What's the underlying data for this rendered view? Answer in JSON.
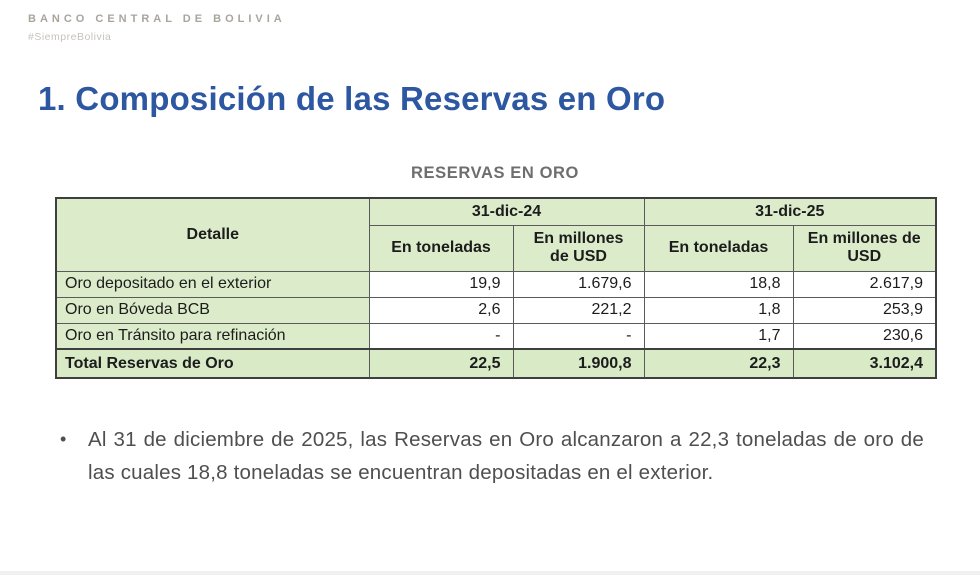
{
  "brand": {
    "name": "BANCO CENTRAL DE BOLIVIA",
    "tagline": "#SiempreBolivia"
  },
  "title": "1. Composición de las Reservas en Oro",
  "table": {
    "title": "RESERVAS EN ORO",
    "detail_header": "Detalle",
    "col_groups": [
      "31-dic-24",
      "31-dic-25"
    ],
    "sub_headers": [
      "En toneladas",
      "En millones de USD",
      "En toneladas",
      "En millones de USD"
    ],
    "rows": [
      {
        "label": "Oro depositado en el exterior",
        "values": [
          "19,9",
          "1.679,6",
          "18,8",
          "2.617,9"
        ]
      },
      {
        "label": "Oro en Bóveda BCB",
        "values": [
          "2,6",
          "221,2",
          "1,8",
          "253,9"
        ]
      },
      {
        "label": "Oro en Tránsito para refinación",
        "values": [
          "-",
          "-",
          "1,7",
          "230,6"
        ]
      }
    ],
    "total": {
      "label": "Total Reservas de Oro",
      "values": [
        "22,5",
        "1.900,8",
        "22,3",
        "3.102,4"
      ]
    }
  },
  "note": {
    "bullet": "•",
    "text": "Al 31 de diciembre de 2025, las Reservas en Oro alcanzaron a 22,3 toneladas de oro de las cuales 18,8 toneladas se encuentran depositadas en el exterior."
  },
  "colors": {
    "title_blue": "#2d57a0",
    "table_green": "#dceccb",
    "total_green": "#d8eac6",
    "brand_gray": "#a9a59c",
    "note_gray": "#4f4f4f"
  }
}
